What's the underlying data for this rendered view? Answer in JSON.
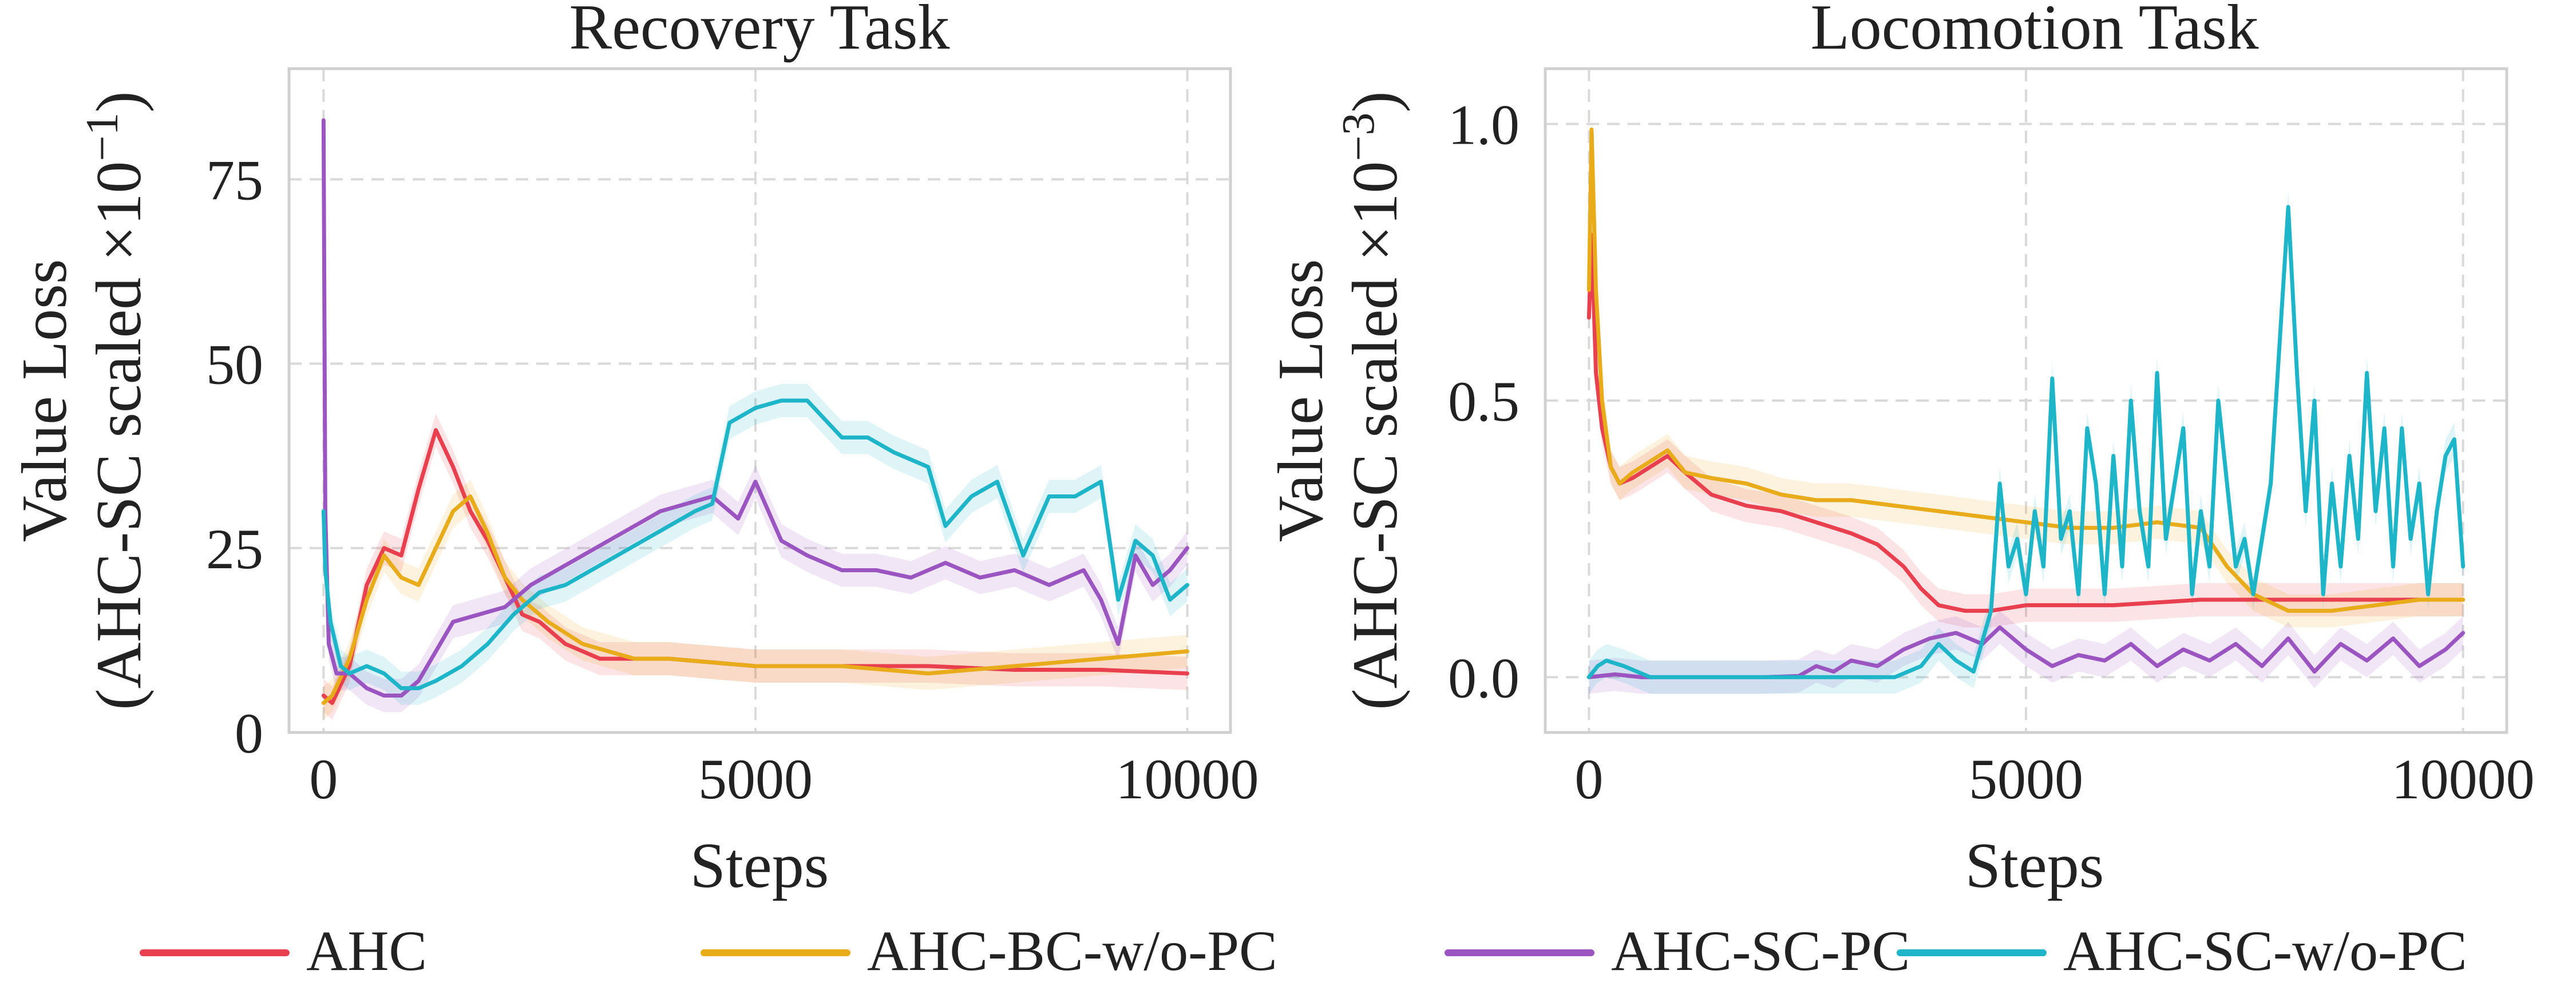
{
  "chart_data": [
    {
      "type": "line",
      "title": "Recovery Task",
      "xlabel": "Steps",
      "ylabel": "Value Loss",
      "ylabel2": "(AHC-SC scaled ×10",
      "ylabel_exp": "−1",
      "ylabel_close": ")",
      "xlim": [
        -400,
        10500
      ],
      "ylim": [
        0,
        90
      ],
      "xticks": [
        0,
        5000,
        10000
      ],
      "xtick_labels": [
        "0",
        "5000",
        "10000"
      ],
      "yticks": [
        0,
        25,
        50,
        75
      ],
      "ytick_labels": [
        "0",
        "25",
        "50",
        "75"
      ],
      "grid": true,
      "series": [
        {
          "name": "AHC",
          "color": "#e8404e",
          "x": [
            0,
            100,
            300,
            500,
            700,
            900,
            1100,
            1300,
            1500,
            1700,
            1900,
            2100,
            2300,
            2500,
            2800,
            3200,
            3600,
            4000,
            5000,
            6000,
            7000,
            8000,
            9000,
            10000
          ],
          "y": [
            5,
            4,
            9,
            20,
            25,
            24,
            33,
            41,
            36,
            30,
            26,
            21,
            16,
            15,
            12,
            10,
            10,
            10,
            9,
            9,
            9,
            8.5,
            8.5,
            8
          ]
        },
        {
          "name": "AHC-BC-w/o-PC",
          "color": "#e8ab1a",
          "x": [
            0,
            100,
            300,
            500,
            700,
            900,
            1100,
            1300,
            1500,
            1700,
            1900,
            2100,
            2300,
            2600,
            3000,
            3600,
            4000,
            5000,
            6000,
            7000,
            8000,
            8500,
            9000,
            9500,
            10000
          ],
          "y": [
            4,
            5,
            10,
            18,
            24,
            21,
            20,
            25,
            30,
            32,
            27,
            21,
            18,
            15,
            12,
            10,
            10,
            9,
            9,
            8,
            9,
            9.5,
            10,
            10.5,
            11
          ]
        },
        {
          "name": "AHC-SC-PC",
          "color": "#9b55c0",
          "x": [
            0,
            20,
            60,
            150,
            300,
            500,
            700,
            900,
            1100,
            1300,
            1500,
            1800,
            2100,
            2400,
            2700,
            3000,
            3300,
            3600,
            3900,
            4200,
            4500,
            4800,
            5000,
            5300,
            5600,
            6000,
            6400,
            6800,
            7200,
            7600,
            8000,
            8400,
            8800,
            9000,
            9200,
            9400,
            9600,
            9800,
            10000
          ],
          "y": [
            83,
            30,
            12,
            8,
            8,
            6,
            5,
            5,
            7,
            11,
            15,
            16,
            17,
            20,
            22,
            24,
            26,
            28,
            30,
            31,
            32,
            29,
            34,
            26,
            24,
            22,
            22,
            21,
            23,
            21,
            22,
            20,
            22,
            18,
            12,
            24,
            20,
            22,
            25
          ]
        },
        {
          "name": "AHC-SC-w/o-PC",
          "color": "#1fb5c9",
          "x": [
            0,
            20,
            80,
            200,
            300,
            500,
            700,
            900,
            1100,
            1300,
            1600,
            1900,
            2200,
            2500,
            2800,
            3100,
            3400,
            3700,
            4000,
            4300,
            4500,
            4700,
            5000,
            5300,
            5600,
            6000,
            6300,
            6600,
            7000,
            7200,
            7500,
            7800,
            8100,
            8400,
            8700,
            9000,
            9200,
            9400,
            9600,
            9800,
            10000
          ],
          "y": [
            30,
            22,
            15,
            9,
            8,
            9,
            8,
            6,
            6,
            7,
            9,
            12,
            16,
            19,
            20,
            22,
            24,
            26,
            28,
            30,
            31,
            42,
            44,
            45,
            45,
            40,
            40,
            38,
            36,
            28,
            32,
            34,
            24,
            32,
            32,
            34,
            18,
            26,
            24,
            18,
            20
          ]
        }
      ]
    },
    {
      "type": "line",
      "title": "Locomotion Task",
      "xlabel": "Steps",
      "ylabel": "Value Loss",
      "ylabel2": "(AHC-SC scaled ×10",
      "ylabel_exp": "−3",
      "ylabel_close": ")",
      "xlim": [
        -500,
        10500
      ],
      "ylim": [
        -0.1,
        1.1
      ],
      "xticks": [
        0,
        5000,
        10000
      ],
      "xtick_labels": [
        "0",
        "5000",
        "10000"
      ],
      "yticks": [
        0.0,
        0.5,
        1.0
      ],
      "ytick_labels": [
        "0.0",
        "0.5",
        "1.0"
      ],
      "grid": true,
      "series": [
        {
          "name": "AHC",
          "color": "#e8404e",
          "x": [
            0,
            30,
            80,
            150,
            250,
            350,
            500,
            700,
            900,
            1100,
            1400,
            1800,
            2200,
            2600,
            3000,
            3300,
            3600,
            3800,
            4000,
            4300,
            4600,
            5000,
            6000,
            7000,
            8000,
            9000,
            10000
          ],
          "y": [
            0.65,
            0.8,
            0.55,
            0.45,
            0.38,
            0.35,
            0.36,
            0.38,
            0.4,
            0.37,
            0.33,
            0.31,
            0.3,
            0.28,
            0.26,
            0.24,
            0.2,
            0.16,
            0.13,
            0.12,
            0.12,
            0.13,
            0.13,
            0.14,
            0.14,
            0.14,
            0.14
          ]
        },
        {
          "name": "AHC-BC-w/o-PC",
          "color": "#e8ab1a",
          "x": [
            0,
            30,
            80,
            150,
            250,
            350,
            500,
            700,
            900,
            1100,
            1400,
            1800,
            2200,
            2600,
            3000,
            3500,
            4000,
            4500,
            5000,
            5500,
            6000,
            6500,
            7000,
            7300,
            7600,
            8000,
            8500,
            9000,
            9500,
            10000
          ],
          "y": [
            0.7,
            0.99,
            0.7,
            0.5,
            0.38,
            0.35,
            0.37,
            0.39,
            0.41,
            0.37,
            0.36,
            0.35,
            0.33,
            0.32,
            0.32,
            0.31,
            0.3,
            0.29,
            0.28,
            0.27,
            0.27,
            0.28,
            0.27,
            0.2,
            0.15,
            0.12,
            0.12,
            0.13,
            0.14,
            0.14
          ]
        },
        {
          "name": "AHC-SC-PC",
          "color": "#9b55c0",
          "x": [
            0,
            300,
            600,
            1000,
            1500,
            2000,
            2400,
            2600,
            2800,
            3000,
            3300,
            3600,
            3900,
            4200,
            4500,
            4700,
            5000,
            5300,
            5600,
            5900,
            6200,
            6500,
            6800,
            7100,
            7400,
            7700,
            8000,
            8300,
            8600,
            8900,
            9200,
            9500,
            9800,
            10000
          ],
          "y": [
            0.0,
            0.005,
            0.0,
            0.0,
            0.0,
            0.0,
            0.002,
            0.02,
            0.01,
            0.03,
            0.02,
            0.05,
            0.07,
            0.08,
            0.06,
            0.09,
            0.05,
            0.02,
            0.04,
            0.03,
            0.06,
            0.02,
            0.05,
            0.03,
            0.06,
            0.02,
            0.07,
            0.01,
            0.06,
            0.03,
            0.07,
            0.02,
            0.05,
            0.08
          ]
        },
        {
          "name": "AHC-SC-w/o-PC",
          "color": "#1fb5c9",
          "x": [
            0,
            100,
            200,
            400,
            700,
            1000,
            1500,
            2000,
            2500,
            3000,
            3500,
            3800,
            4000,
            4200,
            4400,
            4600,
            4700,
            4800,
            4900,
            5000,
            5100,
            5200,
            5300,
            5400,
            5500,
            5600,
            5700,
            5800,
            5900,
            6000,
            6100,
            6200,
            6300,
            6400,
            6500,
            6600,
            6700,
            6800,
            6900,
            7000,
            7100,
            7200,
            7300,
            7400,
            7500,
            7600,
            7700,
            7800,
            7900,
            8000,
            8100,
            8200,
            8300,
            8400,
            8500,
            8600,
            8700,
            8800,
            8900,
            9000,
            9100,
            9200,
            9300,
            9400,
            9500,
            9600,
            9700,
            9800,
            9900,
            10000
          ],
          "y": [
            0.0,
            0.02,
            0.03,
            0.02,
            0.0,
            0.0,
            0.0,
            0.0,
            0.0,
            0.0,
            0.0,
            0.02,
            0.06,
            0.03,
            0.01,
            0.12,
            0.35,
            0.2,
            0.25,
            0.15,
            0.3,
            0.2,
            0.54,
            0.25,
            0.3,
            0.15,
            0.45,
            0.35,
            0.15,
            0.4,
            0.2,
            0.5,
            0.3,
            0.2,
            0.55,
            0.25,
            0.35,
            0.45,
            0.15,
            0.3,
            0.2,
            0.5,
            0.35,
            0.2,
            0.25,
            0.15,
            0.25,
            0.35,
            0.6,
            0.85,
            0.55,
            0.3,
            0.5,
            0.15,
            0.35,
            0.2,
            0.4,
            0.25,
            0.55,
            0.3,
            0.45,
            0.2,
            0.45,
            0.25,
            0.35,
            0.15,
            0.3,
            0.4,
            0.43,
            0.2
          ]
        }
      ]
    }
  ],
  "legend": {
    "position": "bottom",
    "items": [
      {
        "label": "AHC",
        "color": "#e8404e"
      },
      {
        "label": "AHC-BC-w/o-PC",
        "color": "#e8ab1a"
      },
      {
        "label": "AHC-SC-PC",
        "color": "#9b55c0"
      },
      {
        "label": "AHC-SC-w/o-PC",
        "color": "#1fb5c9"
      }
    ]
  }
}
